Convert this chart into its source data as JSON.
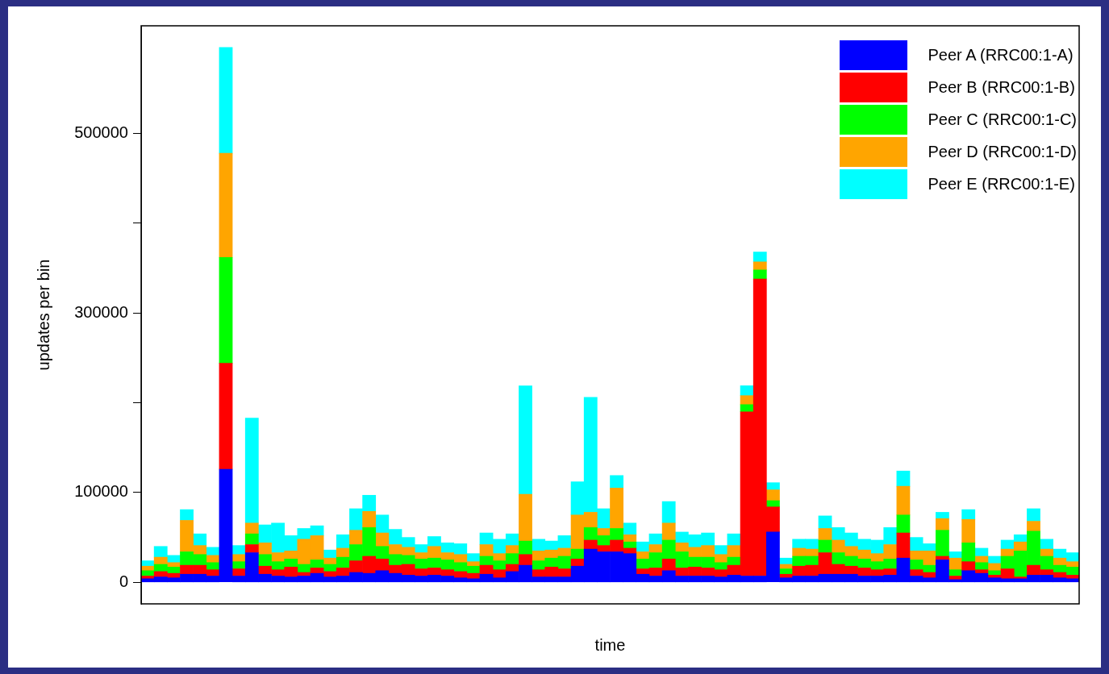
{
  "chart_data": {
    "type": "bar",
    "stacked": true,
    "xlabel": "time",
    "ylabel": "updates per bin",
    "categories": [
      null,
      null,
      null,
      null,
      null,
      null,
      null,
      null,
      null,
      null,
      null,
      null,
      null,
      null,
      null,
      null,
      null,
      null,
      null,
      null,
      null,
      null,
      null,
      null,
      null,
      null,
      null,
      null,
      null,
      null,
      null,
      null,
      null,
      null,
      null,
      null,
      null,
      null,
      null,
      null,
      null,
      null,
      null,
      null,
      null,
      null,
      null,
      null,
      null,
      null,
      null,
      null,
      null,
      null,
      null,
      null,
      null,
      null,
      null,
      null,
      null,
      null,
      null,
      null,
      null,
      null,
      null,
      null,
      null,
      null,
      null,
      null
    ],
    "ylim": [
      -24000,
      620000
    ],
    "yticks": [
      0,
      100000,
      {
        "value": 200000,
        "label": null
      },
      300000,
      {
        "value": 400000,
        "label": null
      },
      500000
    ],
    "legend": "top right",
    "series": [
      {
        "name": "Peer A (RRC00:1-A)",
        "color": "#0000ff",
        "values": [
          4000,
          6000,
          5000,
          9000,
          9000,
          7000,
          126000,
          7000,
          33000,
          9000,
          7000,
          6000,
          7000,
          10000,
          6000,
          7000,
          11000,
          10000,
          13000,
          10000,
          8000,
          7000,
          8000,
          7000,
          5000,
          4000,
          9000,
          5000,
          12000,
          19000,
          6000,
          6000,
          6000,
          18000,
          37000,
          34000,
          34000,
          32000,
          9000,
          7000,
          13000,
          7000,
          7000,
          7000,
          6000,
          8000,
          7000,
          7000,
          56000,
          5000,
          7000,
          7000,
          9000,
          9000,
          9000,
          7000,
          7000,
          8000,
          27000,
          7000,
          5000,
          25000,
          3000,
          13000,
          10000,
          5000,
          4000,
          4000,
          8000,
          8000,
          5000,
          4000
        ]
      },
      {
        "name": "Peer B (RRC00:1-B)",
        "color": "#ff0000",
        "values": [
          3000,
          6000,
          5000,
          10000,
          10000,
          7000,
          118000,
          8000,
          9000,
          9000,
          7000,
          11000,
          4000,
          6000,
          6000,
          9000,
          13000,
          19000,
          13000,
          9000,
          12000,
          8000,
          8000,
          7000,
          7000,
          6000,
          10000,
          9000,
          8000,
          12000,
          8000,
          11000,
          9000,
          8000,
          10000,
          7000,
          13000,
          6000,
          6000,
          9000,
          13000,
          9000,
          10000,
          9000,
          8000,
          11000,
          183000,
          331000,
          28000,
          4000,
          11000,
          12000,
          24000,
          11000,
          9000,
          9000,
          7000,
          7000,
          28000,
          7000,
          6000,
          4000,
          4000,
          10000,
          4000,
          3000,
          11000,
          2000,
          11000,
          6000,
          6000,
          4000
        ]
      },
      {
        "name": "Peer C (RRC00:1-C)",
        "color": "#00ff00",
        "values": [
          6000,
          8000,
          7000,
          15000,
          12000,
          8000,
          118000,
          8000,
          12000,
          13000,
          9000,
          9000,
          9000,
          9000,
          8000,
          12000,
          18000,
          32000,
          14000,
          12000,
          10000,
          11000,
          11000,
          11000,
          10000,
          8000,
          10000,
          10000,
          12000,
          15000,
          10000,
          10000,
          14000,
          11000,
          14000,
          11000,
          13000,
          7000,
          11000,
          17000,
          21000,
          18000,
          11000,
          12000,
          8000,
          9000,
          8000,
          10000,
          7000,
          6000,
          11000,
          10000,
          14000,
          13000,
          11000,
          10000,
          9000,
          11000,
          20000,
          11000,
          8000,
          29000,
          7000,
          21000,
          8000,
          5000,
          14000,
          29000,
          38000,
          15000,
          8000,
          9000
        ]
      },
      {
        "name": "Peer D (RRC00:1-D)",
        "color": "#ffa500",
        "values": [
          5000,
          8000,
          5000,
          35000,
          10000,
          8000,
          116000,
          8000,
          12000,
          13000,
          10000,
          9000,
          28000,
          27000,
          7000,
          10000,
          16000,
          18000,
          15000,
          11000,
          9000,
          7000,
          13000,
          8000,
          9000,
          5000,
          13000,
          8000,
          9000,
          52000,
          11000,
          9000,
          9000,
          38000,
          17000,
          8000,
          45000,
          8000,
          8000,
          9000,
          19000,
          10000,
          11000,
          13000,
          9000,
          13000,
          10000,
          9000,
          12000,
          5000,
          9000,
          8000,
          13000,
          14000,
          11000,
          10000,
          9000,
          16000,
          32000,
          10000,
          16000,
          13000,
          13000,
          26000,
          7000,
          8000,
          8000,
          10000,
          11000,
          8000,
          8000,
          6000
        ]
      },
      {
        "name": "Peer E (RRC00:1-E)",
        "color": "#00ffff",
        "values": [
          6000,
          12000,
          8000,
          12000,
          13000,
          9000,
          118000,
          10000,
          117000,
          20000,
          33000,
          17000,
          12000,
          11000,
          9000,
          15000,
          24000,
          18000,
          20000,
          17000,
          11000,
          9000,
          11000,
          11000,
          12000,
          9000,
          13000,
          16000,
          13000,
          121000,
          13000,
          10000,
          14000,
          37000,
          128000,
          22000,
          14000,
          13000,
          11000,
          12000,
          24000,
          12000,
          14000,
          14000,
          10000,
          13000,
          11000,
          11000,
          8000,
          7000,
          10000,
          11000,
          14000,
          14000,
          15000,
          12000,
          15000,
          19000,
          17000,
          15000,
          8000,
          7000,
          7000,
          11000,
          9000,
          8000,
          10000,
          8000,
          14000,
          11000,
          10000,
          10000
        ]
      }
    ]
  }
}
